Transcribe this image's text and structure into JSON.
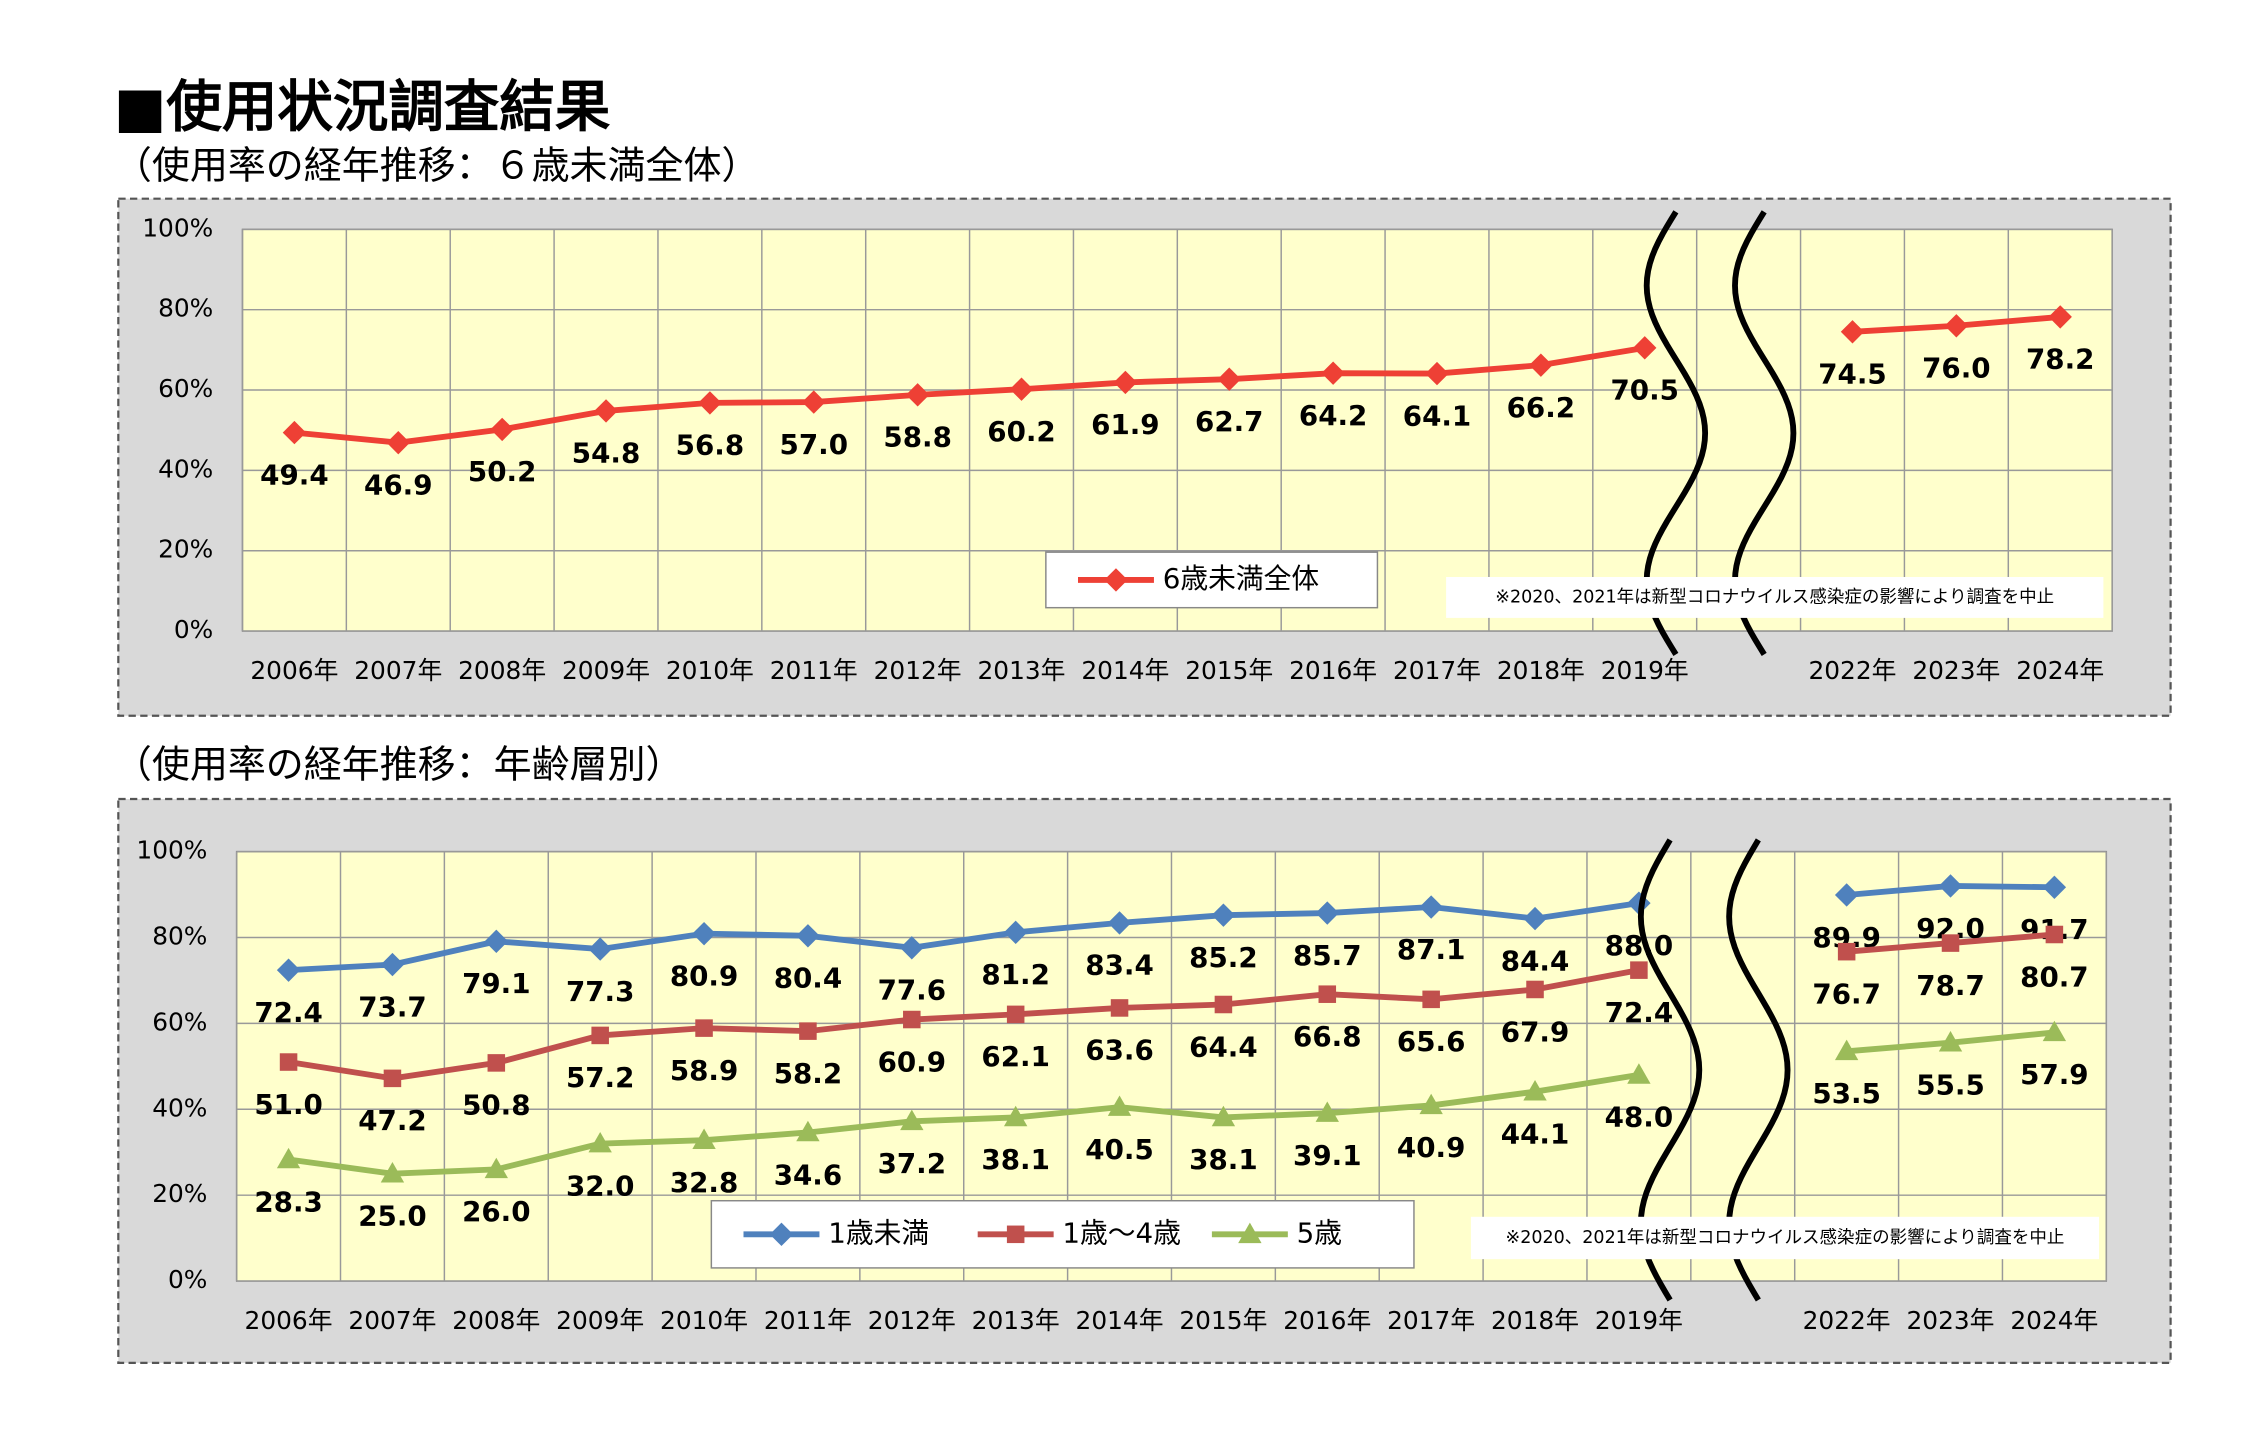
{
  "heading": "■使用状況調査結果",
  "chart_data": [
    {
      "type": "line",
      "title": "（使用率の経年推移：６歳未満全体）",
      "categories": [
        "2006年",
        "2007年",
        "2008年",
        "2009年",
        "2010年",
        "2011年",
        "2012年",
        "2013年",
        "2014年",
        "2015年",
        "2016年",
        "2017年",
        "2018年",
        "2019年",
        null,
        "2022年",
        "2023年",
        "2024年"
      ],
      "series": [
        {
          "name": "6歳未満全体",
          "color": "#ee4035",
          "marker": "diamond",
          "values": [
            49.4,
            46.9,
            50.2,
            54.8,
            56.8,
            57.0,
            58.8,
            60.2,
            61.9,
            62.7,
            64.2,
            64.1,
            66.2,
            70.5,
            null,
            74.5,
            76.0,
            78.2
          ],
          "value_labels": [
            "49.4",
            "46.9",
            "50.2",
            "54.8",
            "56.8",
            "57.0",
            "58.8",
            "60.2",
            "61.9",
            "62.7",
            "64.2",
            "64.1",
            "66.2",
            "70.5",
            null,
            "74.5",
            "76.0",
            "78.2"
          ]
        }
      ],
      "ylim": [
        0,
        100
      ],
      "yticks": [
        {
          "value": 0,
          "label": "0%"
        },
        {
          "value": 20,
          "label": "20%"
        },
        {
          "value": 40,
          "label": "40%"
        },
        {
          "value": 60,
          "label": "60%"
        },
        {
          "value": 80,
          "label": "80%"
        },
        {
          "value": 100,
          "label": "100%"
        }
      ],
      "grid": true,
      "annotation": "※2020、2021年は新型コロナウイルス感染症の影響により調査を中止"
    },
    {
      "type": "line",
      "title": "（使用率の経年推移：年齢層別）",
      "categories": [
        "2006年",
        "2007年",
        "2008年",
        "2009年",
        "2010年",
        "2011年",
        "2012年",
        "2013年",
        "2014年",
        "2015年",
        "2016年",
        "2017年",
        "2018年",
        "2019年",
        null,
        "2022年",
        "2023年",
        "2024年"
      ],
      "series": [
        {
          "name": "1歳未満",
          "color": "#4f81bd",
          "marker": "diamond",
          "values": [
            72.4,
            73.7,
            79.1,
            77.3,
            80.9,
            80.4,
            77.6,
            81.2,
            83.4,
            85.2,
            85.7,
            87.1,
            84.4,
            88.0,
            null,
            89.9,
            92.0,
            91.7
          ],
          "value_labels": [
            "72.4",
            "73.7",
            "79.1",
            "77.3",
            "80.9",
            "80.4",
            "77.6",
            "81.2",
            "83.4",
            "85.2",
            "85.7",
            "87.1",
            "84.4",
            "88.0",
            null,
            "89.9",
            "92.0",
            "91.7"
          ]
        },
        {
          "name": "1歳～4歳",
          "color": "#c0504d",
          "marker": "square",
          "values": [
            51.0,
            47.2,
            50.8,
            57.2,
            58.9,
            58.2,
            60.9,
            62.1,
            63.6,
            64.4,
            66.8,
            65.6,
            67.9,
            72.4,
            null,
            76.7,
            78.7,
            80.7
          ],
          "value_labels": [
            "51.0",
            "47.2",
            "50.8",
            "57.2",
            "58.9",
            "58.2",
            "60.9",
            "62.1",
            "63.6",
            "64.4",
            "66.8",
            "65.6",
            "67.9",
            "72.4",
            null,
            "76.7",
            "78.7",
            "80.7"
          ]
        },
        {
          "name": "5歳",
          "color": "#9bbb59",
          "marker": "triangle",
          "values": [
            28.3,
            25.0,
            26.0,
            32.0,
            32.8,
            34.6,
            37.2,
            38.1,
            40.5,
            38.1,
            39.1,
            40.9,
            44.1,
            48.0,
            null,
            53.5,
            55.5,
            57.9
          ],
          "value_labels": [
            "28.3",
            "25.0",
            "26.0",
            "32.0",
            "32.8",
            "34.6",
            "37.2",
            "38.1",
            "40.5",
            "38.1",
            "39.1",
            "40.9",
            "44.1",
            "48.0",
            null,
            "53.5",
            "55.5",
            "57.9"
          ]
        }
      ],
      "ylim": [
        0,
        100
      ],
      "yticks": [
        {
          "value": 0,
          "label": "0%"
        },
        {
          "value": 20,
          "label": "20%"
        },
        {
          "value": 40,
          "label": "40%"
        },
        {
          "value": 60,
          "label": "60%"
        },
        {
          "value": 80,
          "label": "80%"
        },
        {
          "value": 100,
          "label": "100%"
        }
      ],
      "grid": true,
      "annotation": "※2020、2021年は新型コロナウイルス感染症の影響により調査を中止"
    }
  ]
}
